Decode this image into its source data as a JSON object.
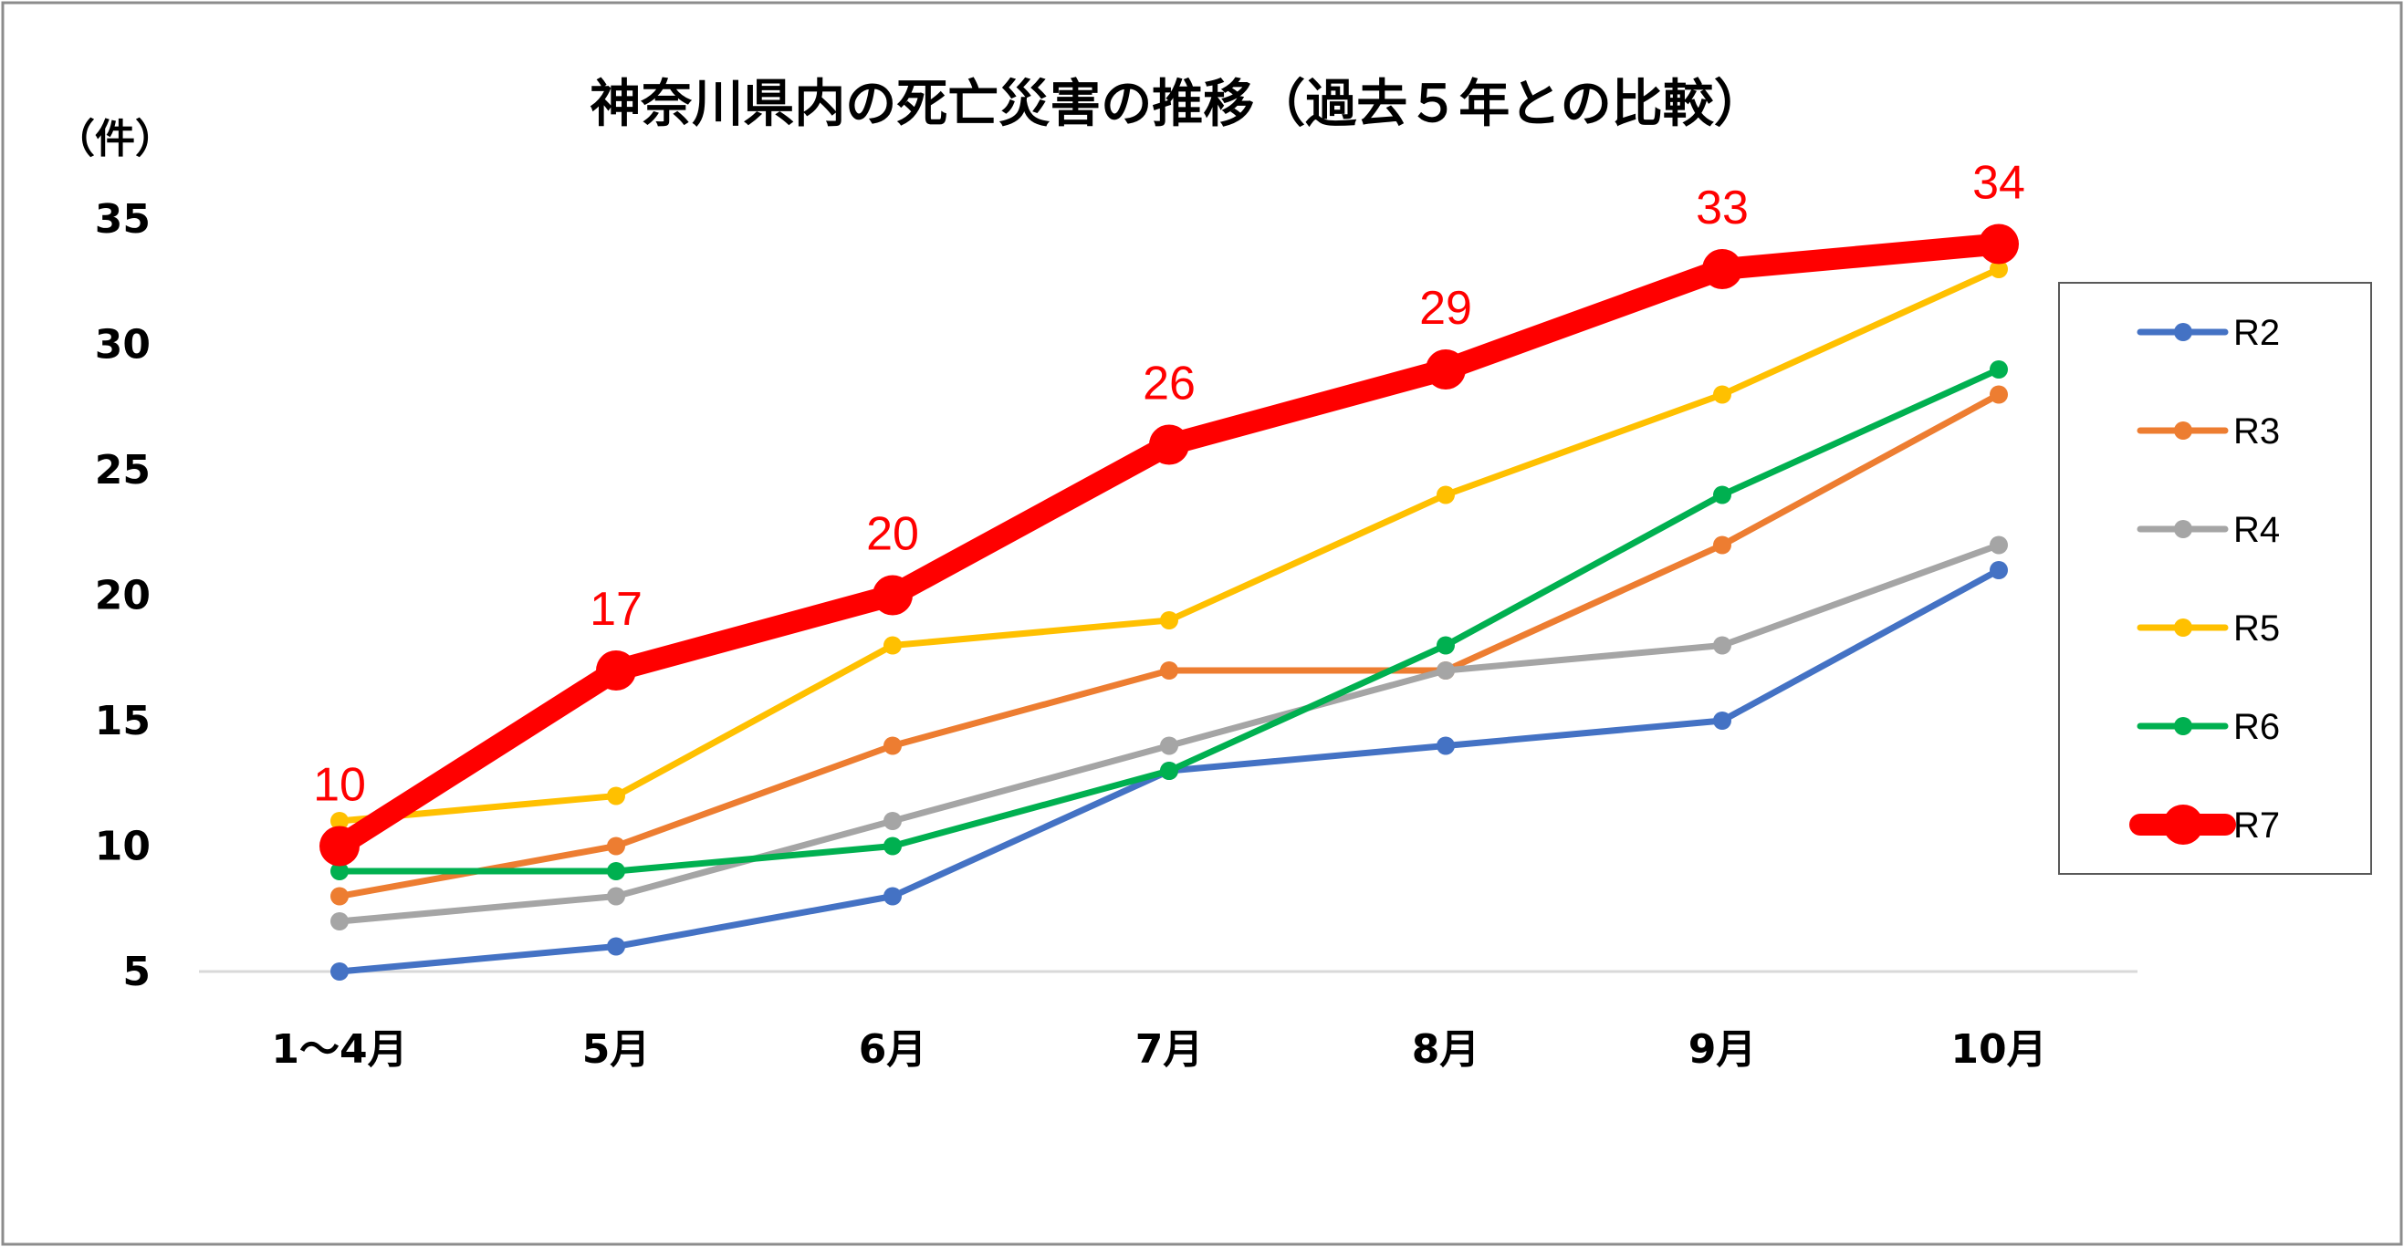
{
  "chart_data": {
    "type": "line",
    "title": "神奈川県内の死亡災害の推移（過去５年との比較）",
    "ylabel": "（件）",
    "xlabel": "",
    "categories": [
      "1～4月",
      "5月",
      "6月",
      "7月",
      "8月",
      "9月",
      "10月"
    ],
    "ylim": [
      5,
      35
    ],
    "yticks": [
      5,
      10,
      15,
      20,
      25,
      30,
      35
    ],
    "grid": false,
    "legend_position": "right",
    "series": [
      {
        "name": "R2",
        "color": "#4472C4",
        "values": [
          5,
          6,
          8,
          13,
          14,
          15,
          21
        ],
        "highlight": false
      },
      {
        "name": "R3",
        "color": "#ED7D31",
        "values": [
          8,
          10,
          14,
          17,
          17,
          22,
          28
        ],
        "highlight": false
      },
      {
        "name": "R4",
        "color": "#A5A5A5",
        "values": [
          7,
          8,
          11,
          14,
          17,
          18,
          22
        ],
        "highlight": false
      },
      {
        "name": "R5",
        "color": "#FFC000",
        "values": [
          11,
          12,
          18,
          19,
          24,
          28,
          33
        ],
        "highlight": false
      },
      {
        "name": "R6",
        "color": "#00B050",
        "values": [
          9,
          9,
          10,
          13,
          18,
          24,
          29
        ],
        "highlight": false
      },
      {
        "name": "R7",
        "color": "#FF0000",
        "values": [
          10,
          17,
          20,
          26,
          29,
          33,
          34
        ],
        "highlight": true,
        "data_labels": true
      }
    ]
  }
}
